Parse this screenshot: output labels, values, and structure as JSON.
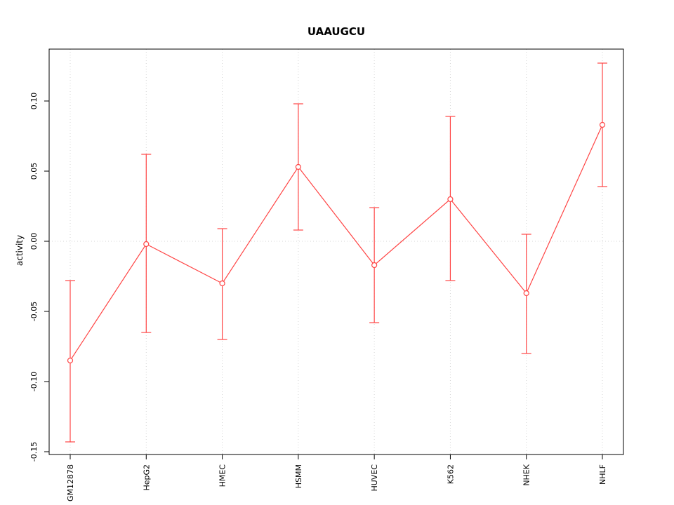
{
  "chart_data": {
    "type": "line",
    "title": "UAAUGCU",
    "xlabel": "",
    "ylabel": "activity",
    "categories": [
      "GM12878",
      "HepG2",
      "HMEC",
      "HSMM",
      "HUVEC",
      "K562",
      "NHEK",
      "NHLF"
    ],
    "series": [
      {
        "name": "activity",
        "values": [
          -0.085,
          -0.002,
          -0.03,
          0.053,
          -0.017,
          0.03,
          -0.037,
          0.083
        ],
        "err_low": [
          -0.143,
          -0.065,
          -0.07,
          0.008,
          -0.058,
          -0.028,
          -0.08,
          0.039
        ],
        "err_high": [
          -0.028,
          0.062,
          0.009,
          0.098,
          0.024,
          0.089,
          0.005,
          0.127
        ]
      }
    ],
    "yticks": [
      -0.15,
      -0.1,
      -0.05,
      0.0,
      0.05,
      0.1
    ],
    "ytick_labels": [
      "-0.15",
      "-0.10",
      "-0.05",
      "0.00",
      "0.05",
      "0.10"
    ],
    "ylim": [
      -0.152,
      0.137
    ],
    "grid": {
      "vertical_dotted_at_each_category": true,
      "horizontal_dotted_at_zero": true
    },
    "legend": "none",
    "colors": {
      "series": "#ff4545",
      "grid": "#d4d4d4",
      "axis": "#000000",
      "background": "#ffffff"
    }
  }
}
